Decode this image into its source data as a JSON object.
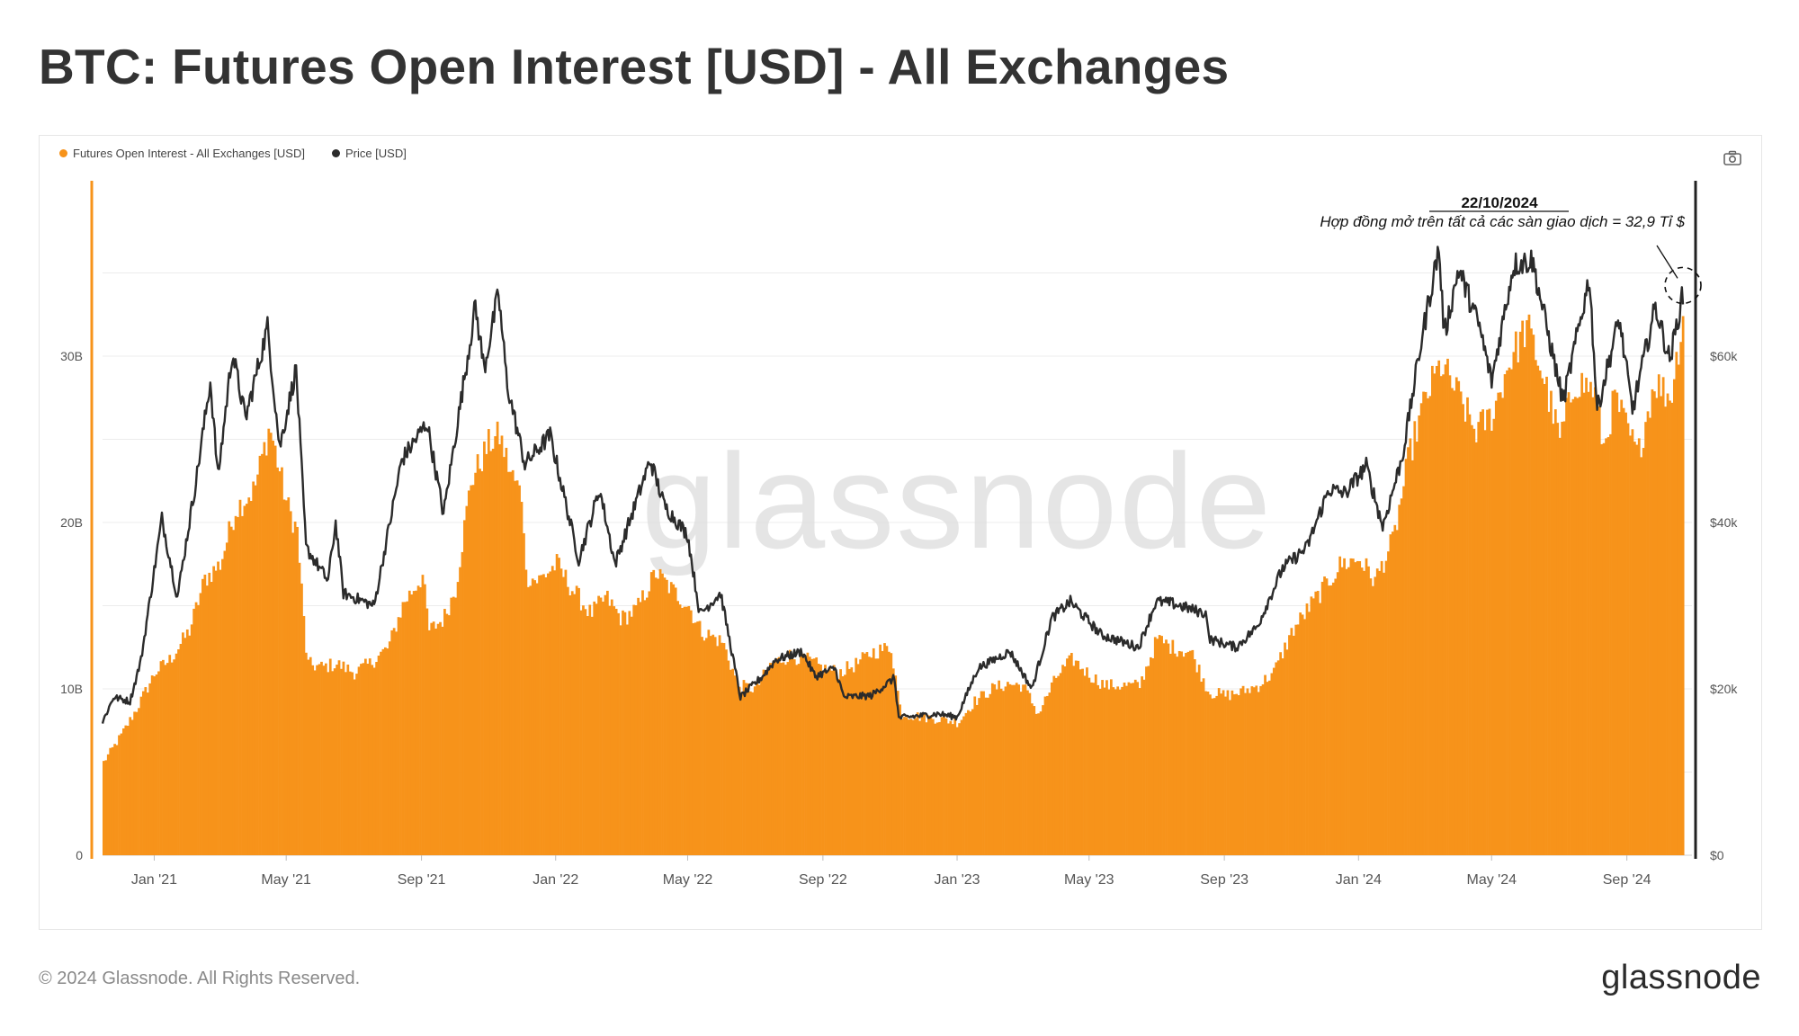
{
  "title": "BTC: Futures Open Interest [USD] - All Exchanges",
  "footer": {
    "copyright": "© 2024 Glassnode. All Rights Reserved.",
    "logo_text": "glassnode"
  },
  "watermark": "glassnode",
  "toolbar": {
    "camera_icon": "camera-icon"
  },
  "colors": {
    "open_interest": "#f7931a",
    "price": "#2b2b2b",
    "grid": "#ececec",
    "marker_bar": "#f7931a",
    "end_bar": "#222222"
  },
  "chart_data": {
    "type": "bar",
    "legend": [
      {
        "label": "Futures Open Interest - All Exchanges [USD]",
        "color": "#f7931a"
      },
      {
        "label": "Price [USD]",
        "color": "#2b2b2b"
      }
    ],
    "x_tick_labels": [
      "Jan '21",
      "May '21",
      "Sep '21",
      "Jan '22",
      "May '22",
      "Sep '22",
      "Jan '23",
      "May '23",
      "Sep '23",
      "Jan '24",
      "May '24",
      "Sep '24"
    ],
    "x_tick_dates": [
      "2021-01-01",
      "2021-05-01",
      "2021-09-01",
      "2022-01-01",
      "2022-05-01",
      "2022-09-01",
      "2023-01-01",
      "2023-05-01",
      "2023-09-01",
      "2024-01-01",
      "2024-05-01",
      "2024-09-01"
    ],
    "x_range": [
      "2020-11-15",
      "2024-10-22"
    ],
    "y_left": {
      "ticks": [
        "0",
        "10B",
        "20B",
        "30B"
      ],
      "tick_values": [
        0,
        10,
        20,
        30
      ],
      "unit": "billions USD",
      "ylim": [
        0,
        40
      ]
    },
    "y_right": {
      "ticks": [
        "$0",
        "$20k",
        "$40k",
        "$60k"
      ],
      "tick_values": [
        0,
        20000,
        40000,
        60000
      ],
      "ylim": [
        0,
        80000
      ]
    },
    "grid": true,
    "annotation": {
      "date": "22/10/2024",
      "text": "Hợp đồng mở trên tất cả các sàn giao dịch = 32,9 Tỉ $",
      "target_date": "2024-10-22",
      "target_price": 68500
    },
    "series": [
      {
        "name": "Futures Open Interest - All Exchanges [USD]",
        "kind": "bar",
        "unit": "billions USD",
        "points": [
          [
            "2020-11-15",
            5.6
          ],
          [
            "2020-12-01",
            7.2
          ],
          [
            "2020-12-15",
            8.8
          ],
          [
            "2021-01-01",
            11.0
          ],
          [
            "2021-01-15",
            11.8
          ],
          [
            "2021-02-01",
            13.5
          ],
          [
            "2021-02-15",
            16.6
          ],
          [
            "2021-03-01",
            17.5
          ],
          [
            "2021-03-15",
            20.8
          ],
          [
            "2021-04-01",
            22.0
          ],
          [
            "2021-04-15",
            25.8
          ],
          [
            "2021-05-01",
            21.0
          ],
          [
            "2021-05-10",
            19.5
          ],
          [
            "2021-05-19",
            11.5
          ],
          [
            "2021-06-01",
            11.3
          ],
          [
            "2021-06-15",
            11.5
          ],
          [
            "2021-07-01",
            11.0
          ],
          [
            "2021-07-15",
            11.5
          ],
          [
            "2021-08-01",
            12.5
          ],
          [
            "2021-08-15",
            15.2
          ],
          [
            "2021-09-01",
            16.8
          ],
          [
            "2021-09-07",
            13.5
          ],
          [
            "2021-09-20",
            14.2
          ],
          [
            "2021-10-01",
            16.0
          ],
          [
            "2021-10-15",
            22.5
          ],
          [
            "2021-11-01",
            24.8
          ],
          [
            "2021-11-10",
            25.2
          ],
          [
            "2021-11-20",
            23.0
          ],
          [
            "2021-12-01",
            21.5
          ],
          [
            "2021-12-04",
            16.8
          ],
          [
            "2021-12-15",
            16.5
          ],
          [
            "2022-01-01",
            17.5
          ],
          [
            "2022-01-15",
            16.0
          ],
          [
            "2022-02-01",
            14.5
          ],
          [
            "2022-02-15",
            15.5
          ],
          [
            "2022-03-01",
            14.2
          ],
          [
            "2022-03-15",
            14.8
          ],
          [
            "2022-04-01",
            17.0
          ],
          [
            "2022-04-15",
            16.0
          ],
          [
            "2022-05-01",
            15.0
          ],
          [
            "2022-05-12",
            13.5
          ],
          [
            "2022-06-01",
            12.8
          ],
          [
            "2022-06-15",
            10.2
          ],
          [
            "2022-07-01",
            10.0
          ],
          [
            "2022-07-15",
            11.5
          ],
          [
            "2022-08-01",
            12.0
          ],
          [
            "2022-08-15",
            11.8
          ],
          [
            "2022-09-01",
            11.2
          ],
          [
            "2022-09-15",
            11.0
          ],
          [
            "2022-10-01",
            11.5
          ],
          [
            "2022-10-15",
            12.2
          ],
          [
            "2022-11-01",
            12.5
          ],
          [
            "2022-11-10",
            8.5
          ],
          [
            "2022-12-01",
            8.3
          ],
          [
            "2022-12-15",
            8.2
          ],
          [
            "2023-01-01",
            8.0
          ],
          [
            "2023-01-15",
            9.2
          ],
          [
            "2023-02-01",
            10.0
          ],
          [
            "2023-02-15",
            10.3
          ],
          [
            "2023-03-01",
            10.2
          ],
          [
            "2023-03-15",
            8.5
          ],
          [
            "2023-04-01",
            10.8
          ],
          [
            "2023-04-15",
            11.8
          ],
          [
            "2023-05-01",
            10.8
          ],
          [
            "2023-05-15",
            10.2
          ],
          [
            "2023-06-01",
            10.2
          ],
          [
            "2023-06-15",
            10.2
          ],
          [
            "2023-07-01",
            13.0
          ],
          [
            "2023-07-15",
            12.5
          ],
          [
            "2023-08-01",
            12.2
          ],
          [
            "2023-08-17",
            9.8
          ],
          [
            "2023-09-01",
            9.6
          ],
          [
            "2023-09-15",
            9.8
          ],
          [
            "2023-10-01",
            10.2
          ],
          [
            "2023-10-15",
            11.0
          ],
          [
            "2023-11-01",
            13.5
          ],
          [
            "2023-11-15",
            14.8
          ],
          [
            "2023-12-01",
            16.2
          ],
          [
            "2023-12-15",
            17.5
          ],
          [
            "2024-01-01",
            17.8
          ],
          [
            "2024-01-15",
            16.5
          ],
          [
            "2024-02-01",
            19.0
          ],
          [
            "2024-02-15",
            24.0
          ],
          [
            "2024-03-01",
            27.5
          ],
          [
            "2024-03-15",
            29.5
          ],
          [
            "2024-04-01",
            27.5
          ],
          [
            "2024-04-15",
            25.5
          ],
          [
            "2024-05-01",
            26.5
          ],
          [
            "2024-05-15",
            29.5
          ],
          [
            "2024-06-01",
            31.8
          ],
          [
            "2024-06-15",
            29.0
          ],
          [
            "2024-07-01",
            25.0
          ],
          [
            "2024-07-15",
            28.5
          ],
          [
            "2024-08-01",
            28.0
          ],
          [
            "2024-08-10",
            24.5
          ],
          [
            "2024-08-20",
            27.5
          ],
          [
            "2024-09-01",
            25.5
          ],
          [
            "2024-09-10",
            24.0
          ],
          [
            "2024-09-25",
            28.5
          ],
          [
            "2024-10-10",
            27.5
          ],
          [
            "2024-10-22",
            32.9
          ]
        ]
      },
      {
        "name": "Price [USD]",
        "kind": "line",
        "unit": "USD",
        "points": [
          [
            "2020-11-15",
            16000
          ],
          [
            "2020-11-25",
            19000
          ],
          [
            "2020-12-10",
            18500
          ],
          [
            "2020-12-20",
            23500
          ],
          [
            "2021-01-08",
            40500
          ],
          [
            "2021-01-22",
            31000
          ],
          [
            "2021-02-08",
            45000
          ],
          [
            "2021-02-21",
            57000
          ],
          [
            "2021-02-28",
            45500
          ],
          [
            "2021-03-13",
            60500
          ],
          [
            "2021-03-25",
            52500
          ],
          [
            "2021-04-14",
            63500
          ],
          [
            "2021-04-25",
            49000
          ],
          [
            "2021-05-10",
            58500
          ],
          [
            "2021-05-19",
            37000
          ],
          [
            "2021-06-08",
            33000
          ],
          [
            "2021-06-15",
            40000
          ],
          [
            "2021-06-22",
            31500
          ],
          [
            "2021-07-20",
            30000
          ],
          [
            "2021-08-14",
            47500
          ],
          [
            "2021-09-06",
            52000
          ],
          [
            "2021-09-21",
            41000
          ],
          [
            "2021-10-20",
            66000
          ],
          [
            "2021-10-28",
            58500
          ],
          [
            "2021-11-10",
            67500
          ],
          [
            "2021-11-18",
            56500
          ],
          [
            "2021-12-04",
            47000
          ],
          [
            "2021-12-27",
            50500
          ],
          [
            "2022-01-22",
            35500
          ],
          [
            "2022-02-10",
            44000
          ],
          [
            "2022-02-24",
            35000
          ],
          [
            "2022-03-28",
            47500
          ],
          [
            "2022-04-10",
            42000
          ],
          [
            "2022-05-01",
            38500
          ],
          [
            "2022-05-12",
            29000
          ],
          [
            "2022-05-31",
            31500
          ],
          [
            "2022-06-18",
            19000
          ],
          [
            "2022-07-08",
            21500
          ],
          [
            "2022-07-20",
            23500
          ],
          [
            "2022-08-13",
            24500
          ],
          [
            "2022-08-25",
            21500
          ],
          [
            "2022-09-12",
            22500
          ],
          [
            "2022-09-20",
            19000
          ],
          [
            "2022-10-15",
            19200
          ],
          [
            "2022-11-05",
            21300
          ],
          [
            "2022-11-09",
            16500
          ],
          [
            "2022-12-15",
            17000
          ],
          [
            "2023-01-01",
            16600
          ],
          [
            "2023-01-20",
            22500
          ],
          [
            "2023-02-18",
            24500
          ],
          [
            "2023-03-10",
            20000
          ],
          [
            "2023-03-28",
            28500
          ],
          [
            "2023-04-14",
            30500
          ],
          [
            "2023-05-12",
            26500
          ],
          [
            "2023-06-15",
            25000
          ],
          [
            "2023-07-01",
            30500
          ],
          [
            "2023-07-15",
            30300
          ],
          [
            "2023-08-16",
            29000
          ],
          [
            "2023-08-18",
            26000
          ],
          [
            "2023-09-12",
            25000
          ],
          [
            "2023-10-01",
            27500
          ],
          [
            "2023-10-24",
            34500
          ],
          [
            "2023-11-15",
            37000
          ],
          [
            "2023-12-05",
            44000
          ],
          [
            "2023-12-20",
            43500
          ],
          [
            "2024-01-08",
            46800
          ],
          [
            "2024-01-23",
            39500
          ],
          [
            "2024-02-10",
            48000
          ],
          [
            "2024-02-28",
            62500
          ],
          [
            "2024-03-14",
            73000
          ],
          [
            "2024-03-19",
            62500
          ],
          [
            "2024-04-01",
            70500
          ],
          [
            "2024-04-20",
            63500
          ],
          [
            "2024-05-01",
            57000
          ],
          [
            "2024-05-21",
            71000
          ],
          [
            "2024-06-07",
            71500
          ],
          [
            "2024-06-25",
            60500
          ],
          [
            "2024-07-05",
            54500
          ],
          [
            "2024-07-29",
            69500
          ],
          [
            "2024-08-05",
            53500
          ],
          [
            "2024-08-25",
            64500
          ],
          [
            "2024-09-06",
            53500
          ],
          [
            "2024-09-27",
            66000
          ],
          [
            "2024-10-10",
            59500
          ],
          [
            "2024-10-22",
            67500
          ]
        ]
      }
    ]
  }
}
